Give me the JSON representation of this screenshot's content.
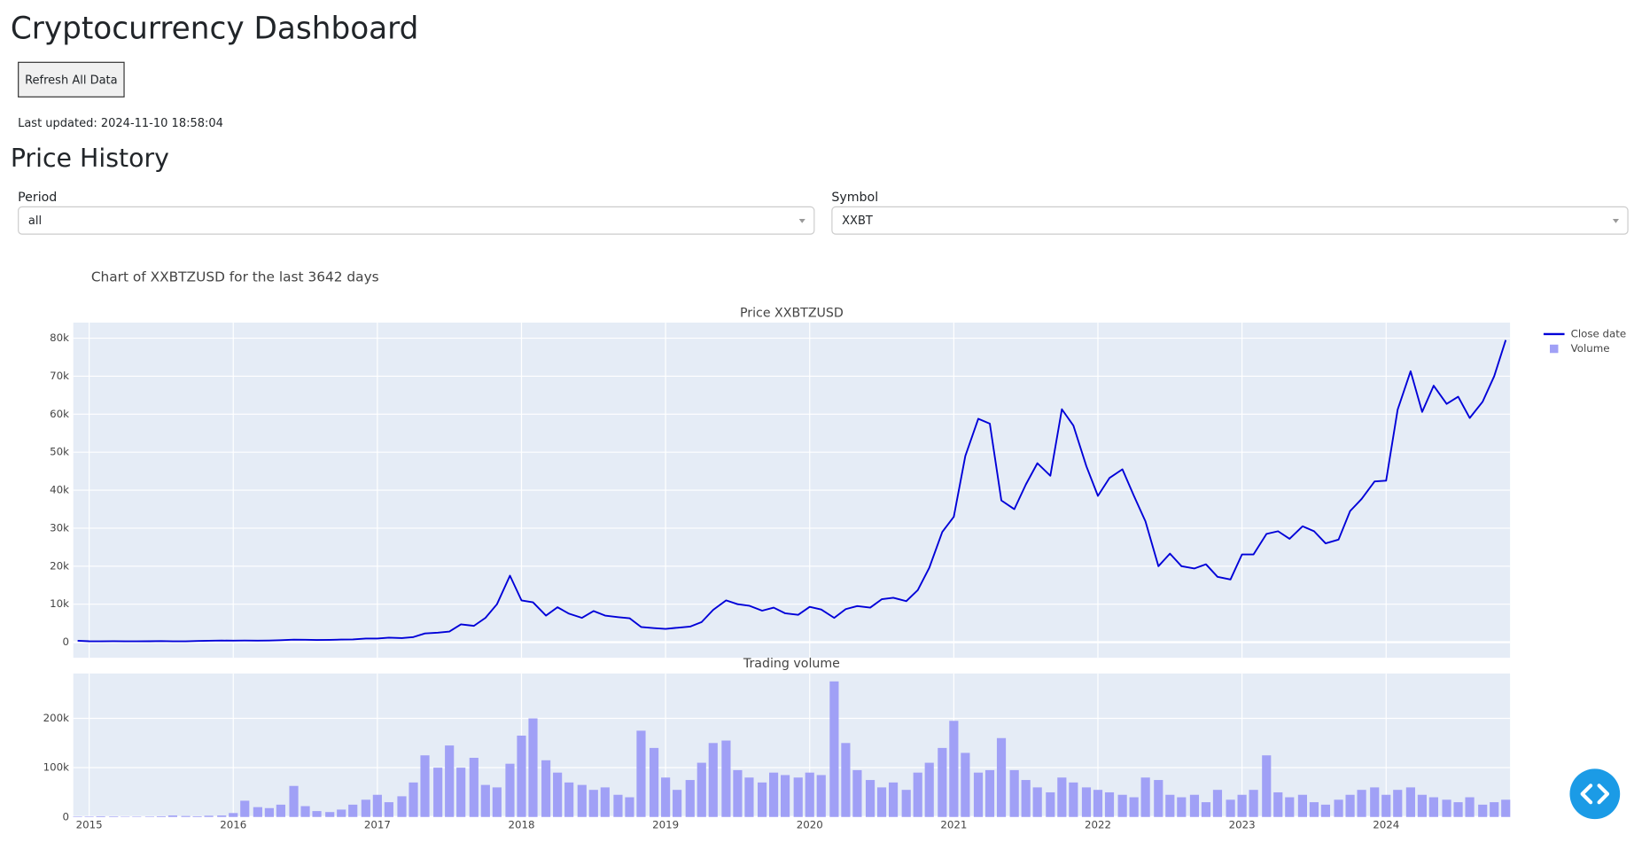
{
  "header": {
    "title": "Cryptocurrency Dashboard"
  },
  "refresh_button": {
    "label": "Refresh All Data"
  },
  "last_updated": "Last updated: 2024-11-10 18:58:04",
  "section_title": "Price History",
  "period": {
    "label": "Period",
    "value": "all"
  },
  "symbol": {
    "label": "Symbol",
    "value": "XXBT"
  },
  "figure": {
    "title": "Chart of XXBTZUSD for the last 3642 days"
  },
  "chart_data": [
    {
      "type": "line",
      "title": "Price XXBTZUSD",
      "grid": true,
      "x": [
        2014.92,
        2015.0,
        2015.08,
        2015.17,
        2015.25,
        2015.33,
        2015.42,
        2015.5,
        2015.58,
        2015.67,
        2015.75,
        2015.83,
        2015.92,
        2016.0,
        2016.08,
        2016.17,
        2016.25,
        2016.33,
        2016.42,
        2016.5,
        2016.58,
        2016.67,
        2016.75,
        2016.83,
        2016.92,
        2017.0,
        2017.08,
        2017.17,
        2017.25,
        2017.33,
        2017.42,
        2017.5,
        2017.58,
        2017.67,
        2017.75,
        2017.83,
        2017.92,
        2018.0,
        2018.08,
        2018.17,
        2018.25,
        2018.33,
        2018.42,
        2018.5,
        2018.58,
        2018.67,
        2018.75,
        2018.83,
        2018.92,
        2019.0,
        2019.08,
        2019.17,
        2019.25,
        2019.33,
        2019.42,
        2019.5,
        2019.58,
        2019.67,
        2019.75,
        2019.83,
        2019.92,
        2020.0,
        2020.08,
        2020.17,
        2020.25,
        2020.33,
        2020.42,
        2020.5,
        2020.58,
        2020.67,
        2020.75,
        2020.83,
        2020.92,
        2021.0,
        2021.08,
        2021.17,
        2021.25,
        2021.33,
        2021.42,
        2021.5,
        2021.58,
        2021.67,
        2021.75,
        2021.83,
        2021.92,
        2022.0,
        2022.08,
        2022.17,
        2022.25,
        2022.33,
        2022.42,
        2022.5,
        2022.58,
        2022.67,
        2022.75,
        2022.83,
        2022.92,
        2023.0,
        2023.08,
        2023.17,
        2023.25,
        2023.33,
        2023.42,
        2023.5,
        2023.58,
        2023.67,
        2023.75,
        2023.83,
        2023.92,
        2024.0,
        2024.08,
        2024.17,
        2024.25,
        2024.33,
        2024.42,
        2024.5,
        2024.58,
        2024.67,
        2024.75,
        2024.83
      ],
      "series": [
        {
          "name": "Close date",
          "color": "#0000d8",
          "values": [
            380,
            250,
            240,
            270,
            240,
            235,
            250,
            280,
            230,
            240,
            310,
            380,
            430,
            400,
            430,
            420,
            450,
            530,
            670,
            650,
            580,
            610,
            700,
            740,
            960,
            970,
            1200,
            1070,
            1350,
            2300,
            2500,
            2800,
            4700,
            4300,
            6400,
            10000,
            17500,
            11000,
            10500,
            7000,
            9200,
            7500,
            6400,
            8200,
            7000,
            6600,
            6300,
            4000,
            3700,
            3500,
            3800,
            4100,
            5300,
            8500,
            11000,
            10000,
            9600,
            8300,
            9100,
            7600,
            7200,
            9300,
            8600,
            6400,
            8700,
            9500,
            9100,
            11300,
            11700,
            10800,
            13700,
            19600,
            29000,
            33000,
            49000,
            58800,
            57500,
            37300,
            35000,
            41500,
            47100,
            43800,
            61300,
            57000,
            46300,
            38500,
            43200,
            45500,
            38500,
            31800,
            20000,
            23300,
            20000,
            19400,
            20500,
            17200,
            16500,
            23100,
            23100,
            28500,
            29200,
            27200,
            30500,
            29200,
            26000,
            27000,
            34500,
            37700,
            42300,
            42500,
            61200,
            71300,
            60600,
            67500,
            62700,
            64600,
            59000,
            63300,
            70000,
            79500
          ]
        }
      ],
      "xlim": [
        2014.89,
        2024.86
      ],
      "xticks": [
        2015,
        2016,
        2017,
        2018,
        2019,
        2020,
        2021,
        2022,
        2023,
        2024
      ],
      "ylim": [
        -4100,
        84100
      ],
      "yticks": [
        0,
        {
          "value": 10000,
          "label": "10k"
        },
        {
          "value": 20000,
          "label": "20k"
        },
        {
          "value": 30000,
          "label": "30k"
        },
        {
          "value": 40000,
          "label": "40k"
        },
        {
          "value": 50000,
          "label": "50k"
        },
        {
          "value": 60000,
          "label": "60k"
        },
        {
          "value": 70000,
          "label": "70k"
        },
        {
          "value": 80000,
          "label": "80k"
        }
      ]
    },
    {
      "type": "bar",
      "title": "Trading volume",
      "grid": true,
      "x": [
        2014.92,
        2015.0,
        2015.08,
        2015.17,
        2015.25,
        2015.33,
        2015.42,
        2015.5,
        2015.58,
        2015.67,
        2015.75,
        2015.83,
        2015.92,
        2016.0,
        2016.08,
        2016.17,
        2016.25,
        2016.33,
        2016.42,
        2016.5,
        2016.58,
        2016.67,
        2016.75,
        2016.83,
        2016.92,
        2017.0,
        2017.08,
        2017.17,
        2017.25,
        2017.33,
        2017.42,
        2017.5,
        2017.58,
        2017.67,
        2017.75,
        2017.83,
        2017.92,
        2018.0,
        2018.08,
        2018.17,
        2018.25,
        2018.33,
        2018.42,
        2018.5,
        2018.58,
        2018.67,
        2018.75,
        2018.83,
        2018.92,
        2019.0,
        2019.08,
        2019.17,
        2019.25,
        2019.33,
        2019.42,
        2019.5,
        2019.58,
        2019.67,
        2019.75,
        2019.83,
        2019.92,
        2020.0,
        2020.08,
        2020.17,
        2020.25,
        2020.33,
        2020.42,
        2020.5,
        2020.58,
        2020.67,
        2020.75,
        2020.83,
        2020.92,
        2021.0,
        2021.08,
        2021.17,
        2021.25,
        2021.33,
        2021.42,
        2021.5,
        2021.58,
        2021.67,
        2021.75,
        2021.83,
        2021.92,
        2022.0,
        2022.08,
        2022.17,
        2022.25,
        2022.33,
        2022.42,
        2022.5,
        2022.58,
        2022.67,
        2022.75,
        2022.83,
        2022.92,
        2023.0,
        2023.08,
        2023.17,
        2023.25,
        2023.33,
        2023.42,
        2023.5,
        2023.58,
        2023.67,
        2023.75,
        2023.83,
        2023.92,
        2024.0,
        2024.08,
        2024.17,
        2024.25,
        2024.33,
        2024.42,
        2024.5,
        2024.58,
        2024.67,
        2024.75,
        2024.83
      ],
      "series": [
        {
          "name": "Volume",
          "color": "#a0a0f6",
          "values": [
            1000,
            1000,
            1500,
            1200,
            800,
            900,
            1000,
            1500,
            3000,
            2000,
            1500,
            2500,
            3000,
            8000,
            33000,
            20000,
            18000,
            25000,
            63000,
            22000,
            12000,
            10000,
            15000,
            25000,
            35000,
            45000,
            30000,
            42000,
            70000,
            125000,
            100000,
            145000,
            100000,
            120000,
            65000,
            60000,
            108000,
            165000,
            200000,
            115000,
            90000,
            70000,
            65000,
            55000,
            60000,
            45000,
            40000,
            175000,
            140000,
            80000,
            55000,
            75000,
            110000,
            150000,
            155000,
            95000,
            80000,
            70000,
            90000,
            85000,
            80000,
            90000,
            85000,
            275000,
            150000,
            95000,
            75000,
            60000,
            70000,
            55000,
            90000,
            110000,
            140000,
            195000,
            130000,
            90000,
            95000,
            160000,
            95000,
            75000,
            60000,
            50000,
            80000,
            70000,
            60000,
            55000,
            50000,
            45000,
            40000,
            80000,
            75000,
            45000,
            40000,
            45000,
            30000,
            55000,
            35000,
            45000,
            55000,
            125000,
            50000,
            40000,
            45000,
            30000,
            25000,
            35000,
            45000,
            55000,
            60000,
            45000,
            55000,
            60000,
            45000,
            40000,
            35000,
            30000,
            40000,
            25000,
            30000,
            35000
          ]
        }
      ],
      "xlim": [
        2014.89,
        2024.86
      ],
      "xticks": [
        2015,
        2016,
        2017,
        2018,
        2019,
        2020,
        2021,
        2022,
        2023,
        2024
      ],
      "ylim": [
        0,
        291000
      ],
      "yticks": [
        0,
        {
          "value": 100000,
          "label": "100k"
        },
        {
          "value": 200000,
          "label": "200k"
        }
      ]
    }
  ]
}
